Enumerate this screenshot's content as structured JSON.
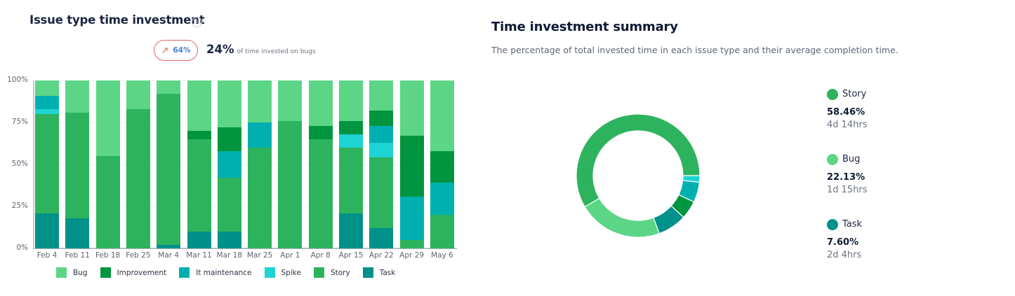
{
  "left_panel": {
    "title": "Issue type time investment",
    "info_icon": "info-icon",
    "trend_badge": {
      "icon": "arrow-up-right-icon",
      "arrow_glyph": "↗",
      "value": "64%"
    },
    "bug_summary": {
      "value": "24%",
      "caption": "of time invested on bugs"
    }
  },
  "right_panel": {
    "title": "Time investment summary",
    "subtitle": "The percentage of total invested time in each issue type and their average completion time.",
    "summary": [
      {
        "name": "Story",
        "percent": "58.46%",
        "avg_time": "4d 14hrs",
        "color": "#2db35d"
      },
      {
        "name": "Bug",
        "percent": "22.13%",
        "avg_time": "1d 15hrs",
        "color": "#5cd686"
      },
      {
        "name": "Task",
        "percent": "7.60%",
        "avg_time": "2d 4hrs",
        "color": "#00918a"
      }
    ]
  },
  "colors": {
    "Bug": "#5cd686",
    "Improvement": "#00953e",
    "It maintenance": "#00b0b0",
    "Spike": "#1dd3d3",
    "Story": "#2db35d",
    "Task": "#00918a"
  },
  "chart_data": [
    {
      "type": "bar",
      "stacked": true,
      "normalized": true,
      "title": "Issue type time investment",
      "xlabel": "",
      "ylabel": "",
      "ylim": [
        0,
        100
      ],
      "y_ticks": [
        "0%",
        "25%",
        "50%",
        "75%",
        "100%"
      ],
      "grid": true,
      "legend_position": "bottom",
      "categories": [
        "Feb 4",
        "Feb 11",
        "Feb 18",
        "Feb 25",
        "Mar 4",
        "Mar 11",
        "Mar 18",
        "Mar 25",
        "Apr 1",
        "Apr 8",
        "Apr 15",
        "Apr 22",
        "Apr 29",
        "May 6"
      ],
      "series": [
        {
          "name": "Task",
          "color": "#00918a",
          "values": [
            21,
            18,
            0,
            0,
            2,
            10,
            10,
            0,
            0,
            0,
            21,
            12,
            0,
            0
          ]
        },
        {
          "name": "Story",
          "color": "#2db35d",
          "values": [
            59,
            63,
            55,
            83,
            90,
            55,
            32,
            60,
            76,
            65,
            39,
            42,
            5,
            20
          ]
        },
        {
          "name": "Spike",
          "color": "#1dd3d3",
          "values": [
            3,
            0,
            0,
            0,
            0,
            0,
            0,
            0,
            0,
            0,
            8,
            9,
            0,
            0
          ]
        },
        {
          "name": "It maintenance",
          "color": "#00b0b0",
          "values": [
            8,
            0,
            0,
            0,
            0,
            0,
            16,
            15,
            0,
            0,
            0,
            10,
            26,
            19
          ]
        },
        {
          "name": "Improvement",
          "color": "#00953e",
          "values": [
            0,
            0,
            0,
            0,
            0,
            5,
            14,
            0,
            0,
            8,
            8,
            9,
            36,
            19
          ]
        },
        {
          "name": "Bug",
          "color": "#5cd686",
          "values": [
            9,
            19,
            45,
            17,
            8,
            30,
            28,
            25,
            24,
            27,
            24,
            18,
            33,
            42
          ]
        }
      ],
      "legend": [
        "Bug",
        "Improvement",
        "It maintenance",
        "Spike",
        "Story",
        "Task"
      ]
    },
    {
      "type": "pie",
      "donut": true,
      "title": "Time investment summary",
      "labels": [
        "Story",
        "Bug",
        "Task",
        "Improvement",
        "It maintenance",
        "Spike"
      ],
      "values": [
        58.46,
        22.13,
        7.6,
        4.8,
        5.3,
        1.71
      ],
      "colors": [
        "#2db35d",
        "#5cd686",
        "#00918a",
        "#00953e",
        "#00b0b0",
        "#1dd3d3"
      ],
      "legend_position": "right"
    }
  ]
}
